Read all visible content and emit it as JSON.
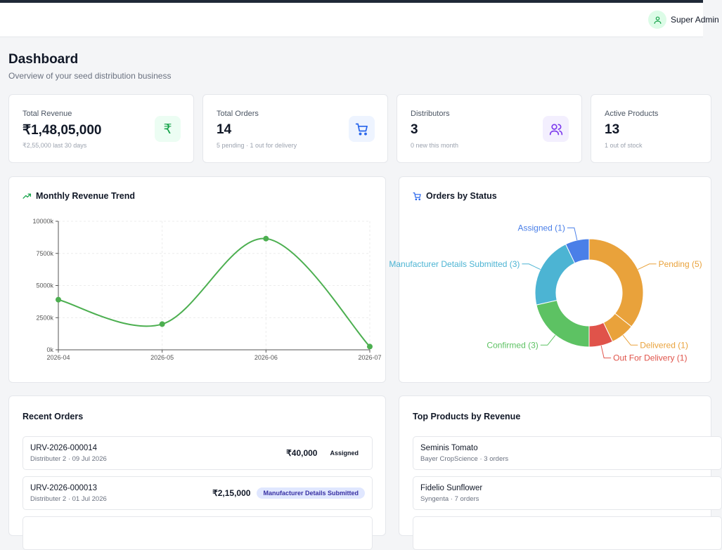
{
  "header": {
    "user_name": "Super Admin"
  },
  "page": {
    "title": "Dashboard",
    "subtitle": "Overview of your seed distribution business"
  },
  "stats": [
    {
      "label": "Total Revenue",
      "value": "₹1,48,05,000",
      "sub": "₹2,55,000 last 30 days",
      "icon": "rupee-icon",
      "icon_color": "#16a34a",
      "icon_bg": "#ecfdf3"
    },
    {
      "label": "Total Orders",
      "value": "14",
      "sub": "5 pending · 1 out for delivery",
      "icon": "cart-icon",
      "icon_color": "#2563eb",
      "icon_bg": "#eef4ff"
    },
    {
      "label": "Distributors",
      "value": "3",
      "sub": "0 new this month",
      "icon": "users-icon",
      "icon_color": "#7c3aed",
      "icon_bg": "#f3effe"
    },
    {
      "label": "Active Products",
      "value": "13",
      "sub": "1 out of stock"
    }
  ],
  "revenue_panel": {
    "title": "Monthly Revenue Trend"
  },
  "status_panel": {
    "title": "Orders by Status"
  },
  "chart_data": [
    {
      "type": "line",
      "title": "Monthly Revenue Trend",
      "x": [
        "2026-04",
        "2026-05",
        "2026-06",
        "2026-07"
      ],
      "y_ticks": [
        "0k",
        "2500k",
        "5000k",
        "7500k",
        "10000k"
      ],
      "ylim": [
        0,
        10000000
      ],
      "series": [
        {
          "values": [
            3900000,
            2000000,
            8650000,
            250000
          ],
          "color": "#4caf50"
        }
      ],
      "grid": true
    },
    {
      "type": "pie",
      "title": "Orders by Status",
      "slices": [
        {
          "label": "Pending (5)",
          "value": 5,
          "color": "#e9a23b"
        },
        {
          "label": "Delivered (1)",
          "value": 1,
          "color": "#e9a23b"
        },
        {
          "label": "Out For Delivery (1)",
          "value": 1,
          "color": "#e0534a"
        },
        {
          "label": "Confirmed (3)",
          "value": 3,
          "color": "#5dc263"
        },
        {
          "label": "Manufacturer Details Submitted (3)",
          "value": 3,
          "color": "#4cb4d3"
        },
        {
          "label": "Assigned (1)",
          "value": 1,
          "color": "#4a7fe8"
        }
      ]
    }
  ],
  "recent_orders": {
    "title": "Recent Orders",
    "items": [
      {
        "id": "URV-2026-000014",
        "sub": "Distributer 2 · 09 Jul 2026",
        "amount": "₹40,000",
        "status": "Assigned",
        "badge_bg": "#ffffff",
        "badge_color": "#111827"
      },
      {
        "id": "URV-2026-000013",
        "sub": "Distributer 2 · 01 Jul 2026",
        "amount": "₹2,15,000",
        "status": "Manufacturer Details Submitted",
        "badge_bg": "#e0e7ff",
        "badge_color": "#3730a3"
      }
    ]
  },
  "top_products": {
    "title": "Top Products by Revenue",
    "items": [
      {
        "name": "Seminis Tomato",
        "sub": "Bayer CropScience · 3 orders"
      },
      {
        "name": "Fidelio Sunflower",
        "sub": "Syngenta · 7 orders"
      }
    ]
  }
}
